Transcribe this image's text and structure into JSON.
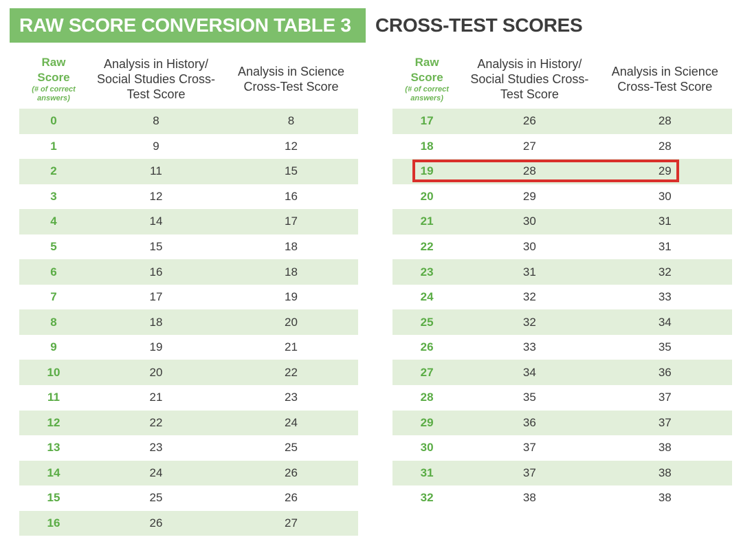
{
  "title": {
    "banner": "RAW SCORE CONVERSION TABLE 3",
    "subtitle": "CROSS-TEST SCORES"
  },
  "columns": {
    "raw_line1": "Raw",
    "raw_line2": "Score",
    "raw_note": "(# of correct answers)",
    "history": "Analysis in History/ Social Studies Cross-Test Score",
    "science": "Analysis in Science Cross-Test Score"
  },
  "left_table": [
    {
      "raw": "0",
      "history": "8",
      "science": "8"
    },
    {
      "raw": "1",
      "history": "9",
      "science": "12"
    },
    {
      "raw": "2",
      "history": "11",
      "science": "15"
    },
    {
      "raw": "3",
      "history": "12",
      "science": "16"
    },
    {
      "raw": "4",
      "history": "14",
      "science": "17"
    },
    {
      "raw": "5",
      "history": "15",
      "science": "18"
    },
    {
      "raw": "6",
      "history": "16",
      "science": "18"
    },
    {
      "raw": "7",
      "history": "17",
      "science": "19"
    },
    {
      "raw": "8",
      "history": "18",
      "science": "20"
    },
    {
      "raw": "9",
      "history": "19",
      "science": "21"
    },
    {
      "raw": "10",
      "history": "20",
      "science": "22"
    },
    {
      "raw": "11",
      "history": "21",
      "science": "23"
    },
    {
      "raw": "12",
      "history": "22",
      "science": "24"
    },
    {
      "raw": "13",
      "history": "23",
      "science": "25"
    },
    {
      "raw": "14",
      "history": "24",
      "science": "26"
    },
    {
      "raw": "15",
      "history": "25",
      "science": "26"
    },
    {
      "raw": "16",
      "history": "26",
      "science": "27"
    }
  ],
  "right_table": [
    {
      "raw": "17",
      "history": "26",
      "science": "28"
    },
    {
      "raw": "18",
      "history": "27",
      "science": "28"
    },
    {
      "raw": "19",
      "history": "28",
      "science": "29"
    },
    {
      "raw": "20",
      "history": "29",
      "science": "30"
    },
    {
      "raw": "21",
      "history": "30",
      "science": "31"
    },
    {
      "raw": "22",
      "history": "30",
      "science": "31"
    },
    {
      "raw": "23",
      "history": "31",
      "science": "32"
    },
    {
      "raw": "24",
      "history": "32",
      "science": "33"
    },
    {
      "raw": "25",
      "history": "32",
      "science": "34"
    },
    {
      "raw": "26",
      "history": "33",
      "science": "35"
    },
    {
      "raw": "27",
      "history": "34",
      "science": "36"
    },
    {
      "raw": "28",
      "history": "35",
      "science": "37"
    },
    {
      "raw": "29",
      "history": "36",
      "science": "37"
    },
    {
      "raw": "30",
      "history": "37",
      "science": "38"
    },
    {
      "raw": "31",
      "history": "37",
      "science": "38"
    },
    {
      "raw": "32",
      "history": "38",
      "science": "38"
    }
  ],
  "highlighted_raw_score": "19",
  "colors": {
    "banner": "#7dbf6b",
    "raw_text": "#5aac45",
    "row_shade": "#e2efda",
    "highlight": "#d9302b"
  }
}
